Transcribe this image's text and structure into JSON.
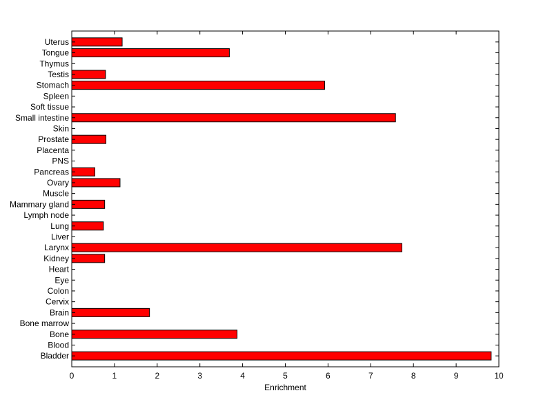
{
  "chart_data": {
    "type": "bar",
    "orientation": "horizontal",
    "categories": [
      "Bladder",
      "Blood",
      "Bone",
      "Bone marrow",
      "Brain",
      "Cervix",
      "Colon",
      "Eye",
      "Heart",
      "Kidney",
      "Larynx",
      "Liver",
      "Lung",
      "Lymph node",
      "Mammary gland",
      "Muscle",
      "Ovary",
      "Pancreas",
      "PNS",
      "Placenta",
      "Prostate",
      "Skin",
      "Small intestine",
      "Soft tissue",
      "Spleen",
      "Stomach",
      "Testis",
      "Thymus",
      "Tongue",
      "Uterus"
    ],
    "values": [
      9.82,
      0,
      3.87,
      0,
      1.82,
      0,
      0,
      0,
      0,
      0.77,
      7.73,
      0,
      0.74,
      0,
      0.77,
      0,
      1.13,
      0.54,
      0,
      0,
      0.8,
      0,
      7.58,
      0,
      0,
      5.92,
      0.79,
      0,
      3.69,
      1.18
    ],
    "xlabel": "Enrichment",
    "ylabel": "",
    "title": "",
    "xlim": [
      0,
      10
    ],
    "xticks": [
      0,
      1,
      2,
      3,
      4,
      5,
      6,
      7,
      8,
      9,
      10
    ],
    "grid": false,
    "legend": "none",
    "bar_color": "#ff0000",
    "edge_color": "#000000"
  }
}
